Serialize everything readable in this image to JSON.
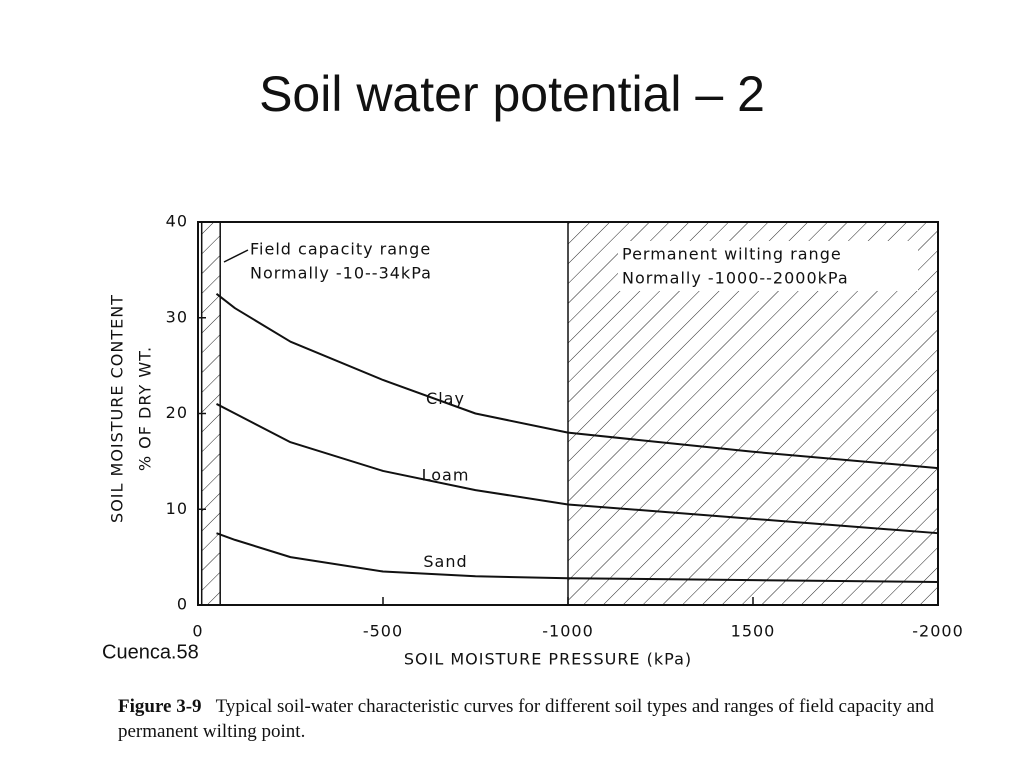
{
  "title": "Soil water potential – 2",
  "source": "Cuenca.58",
  "caption": {
    "label": "Figure 3-9",
    "text": "Typical soil-water characteristic curves for different soil types and ranges of field capacity and permanent wilting point."
  },
  "chart_data": {
    "type": "line",
    "ylabel": [
      "SOIL MOISTURE CONTENT",
      "% OF DRY WT."
    ],
    "xlabel": "SOIL MOISTURE PRESSURE (kPa)",
    "x": [
      -50,
      -100,
      -250,
      -500,
      -750,
      -1000,
      -1500,
      -2000
    ],
    "series": [
      {
        "name": "Clay",
        "color": "#111111",
        "values": [
          32.5,
          31,
          27.5,
          23.5,
          20,
          18,
          16,
          14.3
        ]
      },
      {
        "name": "Loam",
        "color": "#111111",
        "values": [
          21,
          20,
          17,
          14,
          12,
          10.5,
          9,
          7.5
        ]
      },
      {
        "name": "Sand",
        "color": "#111111",
        "values": [
          7.5,
          6.8,
          5,
          3.5,
          3,
          2.8,
          2.6,
          2.4
        ]
      }
    ],
    "xlim": [
      0,
      -2000
    ],
    "xticks": [
      0,
      -500,
      -1000,
      {
        "value": -1500,
        "label": "1500"
      },
      -2000
    ],
    "ylim": [
      0,
      40
    ],
    "yticks": [
      0,
      10,
      20,
      30,
      40
    ],
    "shaded_ranges": [
      {
        "from": -10,
        "to": -60,
        "label": [
          "Field capacity range",
          "Normally -10--34kPa"
        ]
      },
      {
        "from": -1000,
        "to": -2000,
        "label": [
          "Permanent wilting range",
          "Normally -1000--2000kPa"
        ]
      }
    ]
  }
}
